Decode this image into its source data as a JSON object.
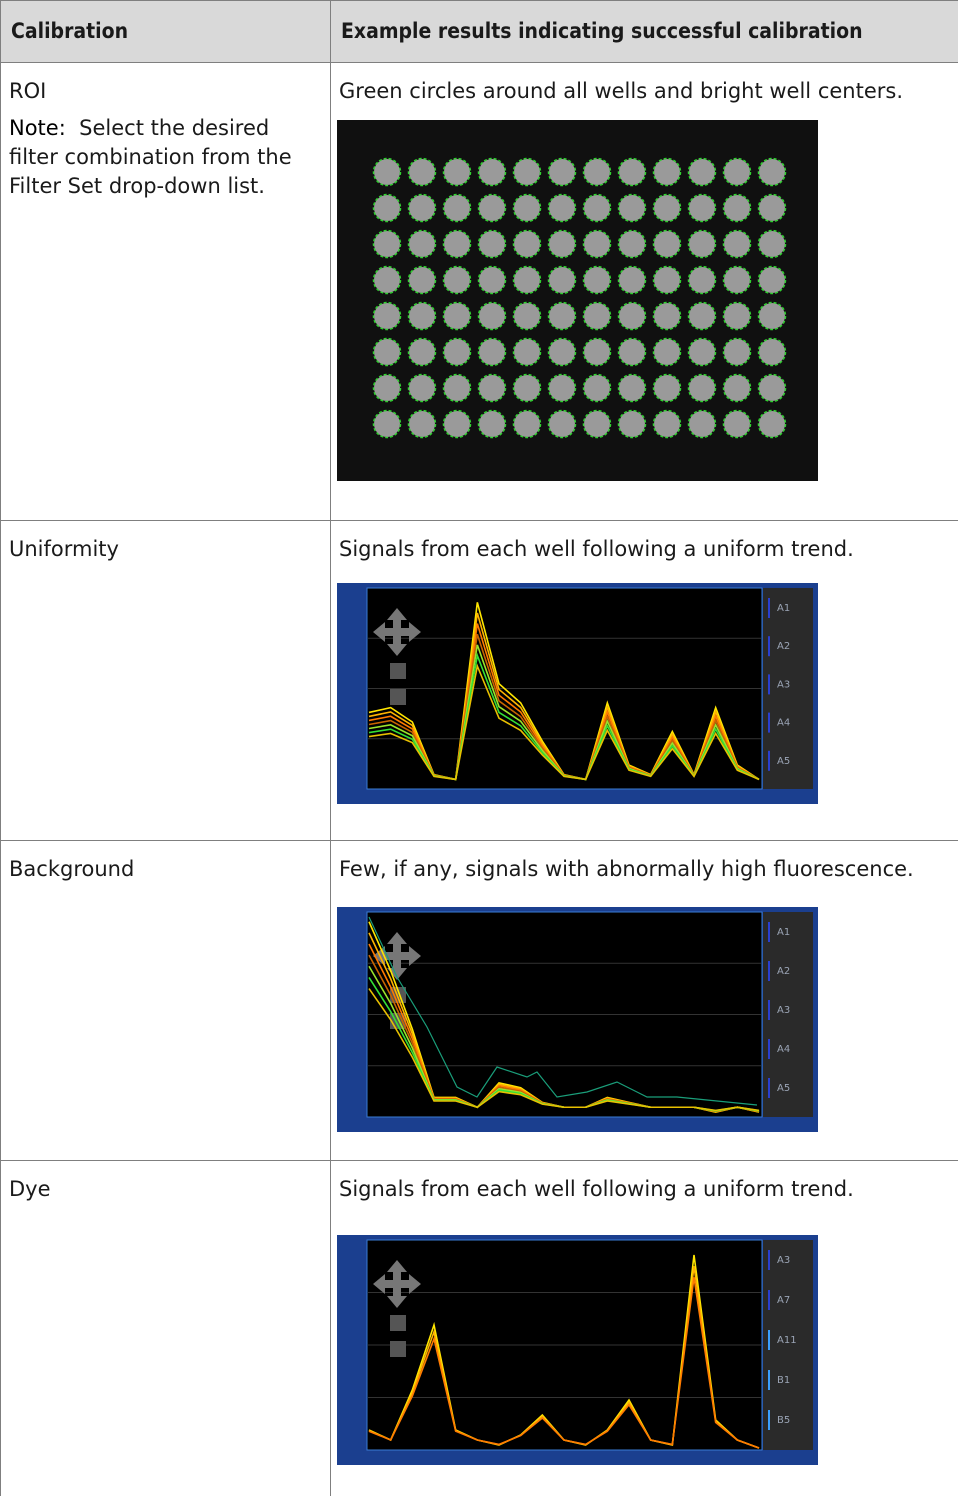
{
  "table": {
    "header": [
      "Calibration",
      "Example results indicating successful calibration"
    ],
    "rows": [
      {
        "calibration": "ROI",
        "note_label": "Note:",
        "note": "Select the desired filter combination from the Filter Set drop-down list.",
        "result": "Green circles around all wells and bright well centers."
      },
      {
        "calibration": "Uniformity",
        "result": "Signals from each well following a uniform trend.",
        "legend": [
          "A1",
          "A2",
          "A3",
          "A4",
          "A5"
        ]
      },
      {
        "calibration": "Background",
        "result": "Few, if any, signals with abnormally high fluorescence.",
        "legend": [
          "A1",
          "A2",
          "A3",
          "A4",
          "A5"
        ]
      },
      {
        "calibration": "Dye",
        "result": "Signals from each well following a uniform trend.",
        "legend": [
          "A3",
          "A7",
          "A11",
          "B1",
          "B5"
        ]
      }
    ]
  }
}
